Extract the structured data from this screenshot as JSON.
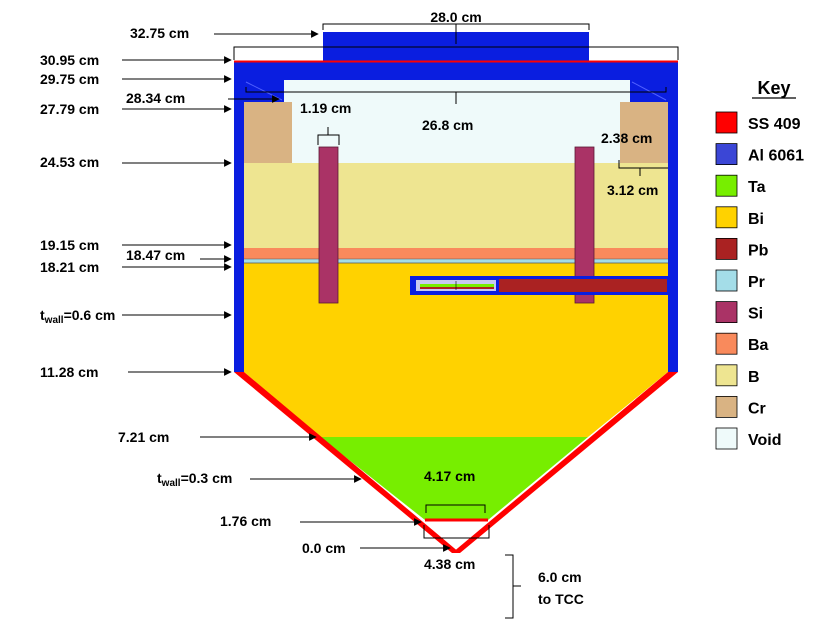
{
  "labels": {
    "w28": "28.0 cm",
    "w3275": "32.75 cm",
    "h3095": "30.95 cm",
    "h2975": "29.75 cm",
    "h2834": "28.34 cm",
    "h2779": "27.79 cm",
    "si_w": "1.19 cm",
    "void_w": "26.8 cm",
    "cr_w": "2.38 cm",
    "h2453": "24.53 cm",
    "cr_h": "3.12 cm",
    "h1915": "19.15 cm",
    "h1847": "18.47 cm",
    "h1821": "18.21 cm",
    "twall1_main": "t",
    "twall1_sub": "wall",
    "twall1_val": "=0.6 cm",
    "h1128": "11.28 cm",
    "h721": "7.21 cm",
    "twall2_main": "t",
    "twall2_sub": "wall",
    "twall2_val": "=0.3 cm",
    "w417": "4.17 cm",
    "h176": "1.76 cm",
    "h00": "0.0 cm",
    "w438": "4.38 cm",
    "tcc_line1": "6.0 cm",
    "tcc_line2": "to TCC"
  },
  "key": {
    "title": "Key",
    "items": [
      {
        "label": "SS 409",
        "color": "#ff0000"
      },
      {
        "label": "Al 6061",
        "color": "#3b46d6"
      },
      {
        "label": "Ta",
        "color": "#77ee00"
      },
      {
        "label": "Bi",
        "color": "#ffd200"
      },
      {
        "label": "Pb",
        "color": "#aa2222"
      },
      {
        "label": "Pr",
        "color": "#a4dde8"
      },
      {
        "label": "Si",
        "color": "#aa3366"
      },
      {
        "label": "Ba",
        "color": "#f98a5c"
      },
      {
        "label": "B",
        "color": "#eee591"
      },
      {
        "label": "Cr",
        "color": "#d9b383"
      },
      {
        "label": "Void",
        "color": "#effafa"
      }
    ]
  },
  "colors": {
    "ss409": "#ff0000",
    "al6061": "#0a1ee0",
    "ta": "#77ee00",
    "bi": "#ffd200",
    "pb": "#aa2222",
    "pr": "#a4dde8",
    "si": "#aa3366",
    "ba": "#f98a5c",
    "b": "#eee591",
    "cr": "#d9b383",
    "void": "#effafa"
  }
}
